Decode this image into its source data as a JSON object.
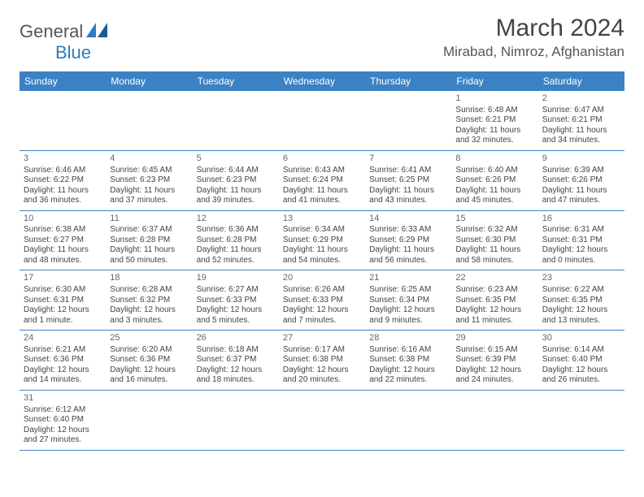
{
  "logo": {
    "text1": "General",
    "text2": "Blue"
  },
  "title": "March 2024",
  "location": "Mirabad, Nimroz, Afghanistan",
  "colors": {
    "header_bg": "#3a82c4",
    "header_text": "#ffffff",
    "accent": "#2f7bbf",
    "text": "#444444",
    "border": "#3a82c4"
  },
  "dayNames": [
    "Sunday",
    "Monday",
    "Tuesday",
    "Wednesday",
    "Thursday",
    "Friday",
    "Saturday"
  ],
  "startOffset": 5,
  "days": [
    {
      "n": 1,
      "sunrise": "6:48 AM",
      "sunset": "6:21 PM",
      "daylight": "11 hours and 32 minutes."
    },
    {
      "n": 2,
      "sunrise": "6:47 AM",
      "sunset": "6:21 PM",
      "daylight": "11 hours and 34 minutes."
    },
    {
      "n": 3,
      "sunrise": "6:46 AM",
      "sunset": "6:22 PM",
      "daylight": "11 hours and 36 minutes."
    },
    {
      "n": 4,
      "sunrise": "6:45 AM",
      "sunset": "6:23 PM",
      "daylight": "11 hours and 37 minutes."
    },
    {
      "n": 5,
      "sunrise": "6:44 AM",
      "sunset": "6:23 PM",
      "daylight": "11 hours and 39 minutes."
    },
    {
      "n": 6,
      "sunrise": "6:43 AM",
      "sunset": "6:24 PM",
      "daylight": "11 hours and 41 minutes."
    },
    {
      "n": 7,
      "sunrise": "6:41 AM",
      "sunset": "6:25 PM",
      "daylight": "11 hours and 43 minutes."
    },
    {
      "n": 8,
      "sunrise": "6:40 AM",
      "sunset": "6:26 PM",
      "daylight": "11 hours and 45 minutes."
    },
    {
      "n": 9,
      "sunrise": "6:39 AM",
      "sunset": "6:26 PM",
      "daylight": "11 hours and 47 minutes."
    },
    {
      "n": 10,
      "sunrise": "6:38 AM",
      "sunset": "6:27 PM",
      "daylight": "11 hours and 48 minutes."
    },
    {
      "n": 11,
      "sunrise": "6:37 AM",
      "sunset": "6:28 PM",
      "daylight": "11 hours and 50 minutes."
    },
    {
      "n": 12,
      "sunrise": "6:36 AM",
      "sunset": "6:28 PM",
      "daylight": "11 hours and 52 minutes."
    },
    {
      "n": 13,
      "sunrise": "6:34 AM",
      "sunset": "6:29 PM",
      "daylight": "11 hours and 54 minutes."
    },
    {
      "n": 14,
      "sunrise": "6:33 AM",
      "sunset": "6:29 PM",
      "daylight": "11 hours and 56 minutes."
    },
    {
      "n": 15,
      "sunrise": "6:32 AM",
      "sunset": "6:30 PM",
      "daylight": "11 hours and 58 minutes."
    },
    {
      "n": 16,
      "sunrise": "6:31 AM",
      "sunset": "6:31 PM",
      "daylight": "12 hours and 0 minutes."
    },
    {
      "n": 17,
      "sunrise": "6:30 AM",
      "sunset": "6:31 PM",
      "daylight": "12 hours and 1 minute."
    },
    {
      "n": 18,
      "sunrise": "6:28 AM",
      "sunset": "6:32 PM",
      "daylight": "12 hours and 3 minutes."
    },
    {
      "n": 19,
      "sunrise": "6:27 AM",
      "sunset": "6:33 PM",
      "daylight": "12 hours and 5 minutes."
    },
    {
      "n": 20,
      "sunrise": "6:26 AM",
      "sunset": "6:33 PM",
      "daylight": "12 hours and 7 minutes."
    },
    {
      "n": 21,
      "sunrise": "6:25 AM",
      "sunset": "6:34 PM",
      "daylight": "12 hours and 9 minutes."
    },
    {
      "n": 22,
      "sunrise": "6:23 AM",
      "sunset": "6:35 PM",
      "daylight": "12 hours and 11 minutes."
    },
    {
      "n": 23,
      "sunrise": "6:22 AM",
      "sunset": "6:35 PM",
      "daylight": "12 hours and 13 minutes."
    },
    {
      "n": 24,
      "sunrise": "6:21 AM",
      "sunset": "6:36 PM",
      "daylight": "12 hours and 14 minutes."
    },
    {
      "n": 25,
      "sunrise": "6:20 AM",
      "sunset": "6:36 PM",
      "daylight": "12 hours and 16 minutes."
    },
    {
      "n": 26,
      "sunrise": "6:18 AM",
      "sunset": "6:37 PM",
      "daylight": "12 hours and 18 minutes."
    },
    {
      "n": 27,
      "sunrise": "6:17 AM",
      "sunset": "6:38 PM",
      "daylight": "12 hours and 20 minutes."
    },
    {
      "n": 28,
      "sunrise": "6:16 AM",
      "sunset": "6:38 PM",
      "daylight": "12 hours and 22 minutes."
    },
    {
      "n": 29,
      "sunrise": "6:15 AM",
      "sunset": "6:39 PM",
      "daylight": "12 hours and 24 minutes."
    },
    {
      "n": 30,
      "sunrise": "6:14 AM",
      "sunset": "6:40 PM",
      "daylight": "12 hours and 26 minutes."
    },
    {
      "n": 31,
      "sunrise": "6:12 AM",
      "sunset": "6:40 PM",
      "daylight": "12 hours and 27 minutes."
    }
  ],
  "labels": {
    "sunrise": "Sunrise:",
    "sunset": "Sunset:",
    "daylight": "Daylight:"
  }
}
